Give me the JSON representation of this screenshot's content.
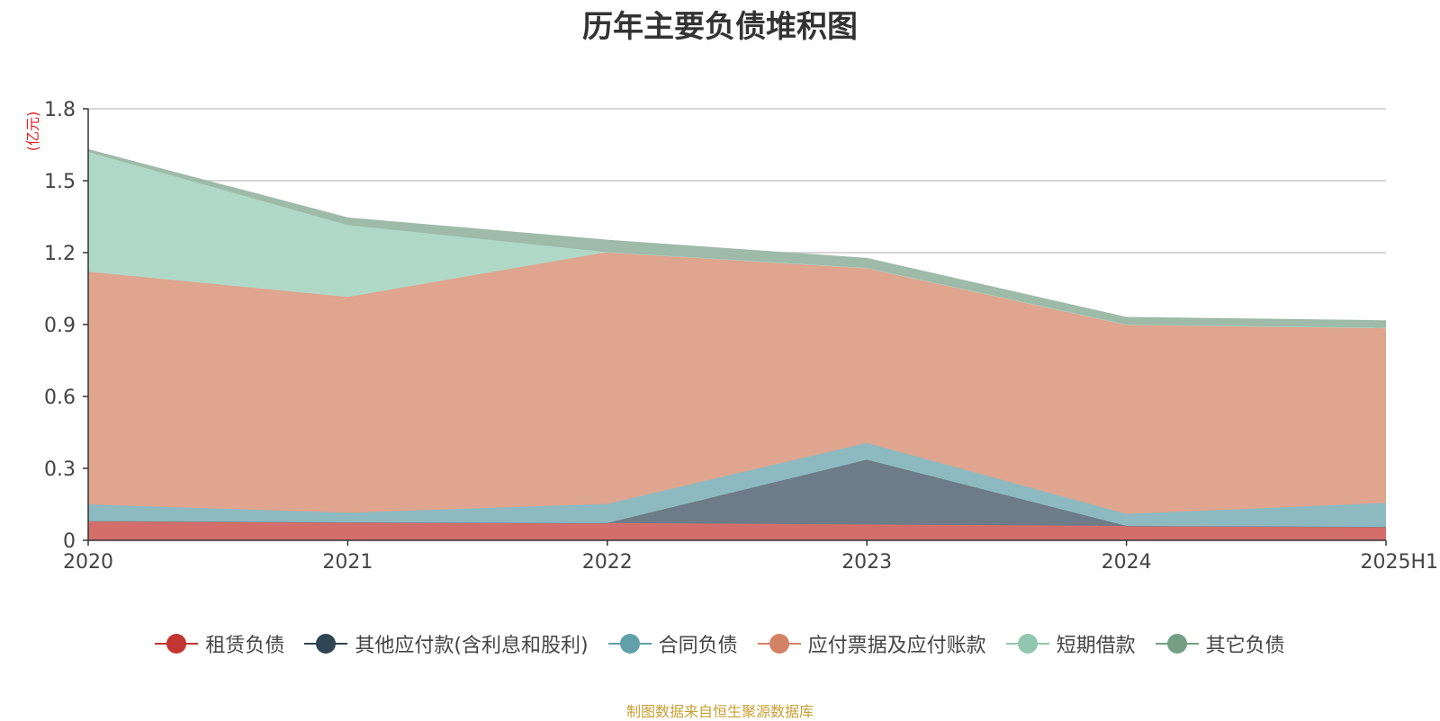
{
  "title": "历年主要负债堆积图",
  "source_note": "制图数据来自恒生聚源数据库",
  "chart_data": {
    "type": "area",
    "stacked": true,
    "title": "历年主要负债堆积图",
    "ylabel": "(亿元)",
    "xlabel": "",
    "categories": [
      "2020",
      "2021",
      "2022",
      "2023",
      "2024",
      "2025H1"
    ],
    "ylim": [
      0,
      1.8
    ],
    "yticks": [
      0,
      0.3,
      0.6,
      0.9,
      1.2,
      1.5,
      1.8
    ],
    "ytick_labels": [
      "0",
      "0.3",
      "0.6",
      "0.9",
      "1.2",
      "1.5",
      "1.8"
    ],
    "grid": true,
    "legend_position": "bottom",
    "series": [
      {
        "name": "租赁负债",
        "color": "#c23531",
        "fill": "#d46e6a",
        "values": [
          0.08,
          0.075,
          0.072,
          0.066,
          0.06,
          0.056
        ]
      },
      {
        "name": "其他应付款(含利息和股利)",
        "color": "#2f4554",
        "fill": "#6d7c88",
        "values": [
          0.0,
          0.0,
          0.0,
          0.27,
          0.0,
          0.0
        ]
      },
      {
        "name": "合同负债",
        "color": "#61a0a8",
        "fill": "#8dbac0",
        "values": [
          0.07,
          0.04,
          0.08,
          0.07,
          0.05,
          0.1
        ]
      },
      {
        "name": "应付票据及应付账款",
        "color": "#d48265",
        "fill": "#dfa58f",
        "values": [
          0.97,
          0.9,
          1.05,
          0.73,
          0.79,
          0.73
        ]
      },
      {
        "name": "短期借款",
        "color": "#91c7ae",
        "fill": "#b0d8c6",
        "values": [
          0.5,
          0.3,
          0.0,
          0.0,
          0.0,
          0.0
        ]
      },
      {
        "name": "其它负债",
        "color": "#749f83",
        "fill": "#9dbba8",
        "values": [
          0.01,
          0.03,
          0.05,
          0.04,
          0.03,
          0.03
        ]
      }
    ]
  }
}
